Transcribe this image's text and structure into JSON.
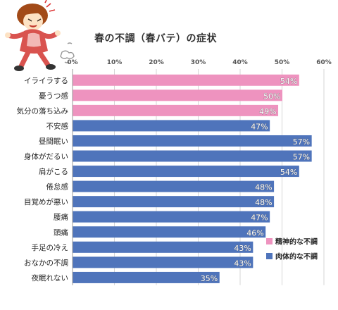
{
  "chart_data": {
    "type": "bar",
    "orientation": "horizontal",
    "title": "春の不調（春バテ）の症状",
    "categories": [
      "イライラする",
      "憂うつ感",
      "気分の落ち込み",
      "不安感",
      "昼間眠い",
      "身体がだるい",
      "肩がこる",
      "倦怠感",
      "目覚めが悪い",
      "腰痛",
      "頭痛",
      "手足の冷え",
      "おなかの不調",
      "夜眠れない"
    ],
    "values": [
      54,
      50,
      49,
      47,
      57,
      57,
      54,
      48,
      48,
      47,
      46,
      43,
      43,
      35
    ],
    "value_suffix": "%",
    "groups": [
      "mental",
      "mental",
      "mental",
      "physical",
      "physical",
      "physical",
      "physical",
      "physical",
      "physical",
      "physical",
      "physical",
      "physical",
      "physical",
      "physical"
    ],
    "xlim": [
      0,
      60
    ],
    "xticks": [
      "0%",
      "10%",
      "20%",
      "30%",
      "40%",
      "50%",
      "60%"
    ],
    "grid": true,
    "legend": {
      "placement": "bottom-right",
      "items": [
        {
          "key": "mental",
          "label": "精神的な不調",
          "color": "#ee93bf"
        },
        {
          "key": "physical",
          "label": "肉体的な不調",
          "color": "#4f74bb"
        }
      ]
    }
  },
  "illustration": "stressed-woman-running-illustration"
}
